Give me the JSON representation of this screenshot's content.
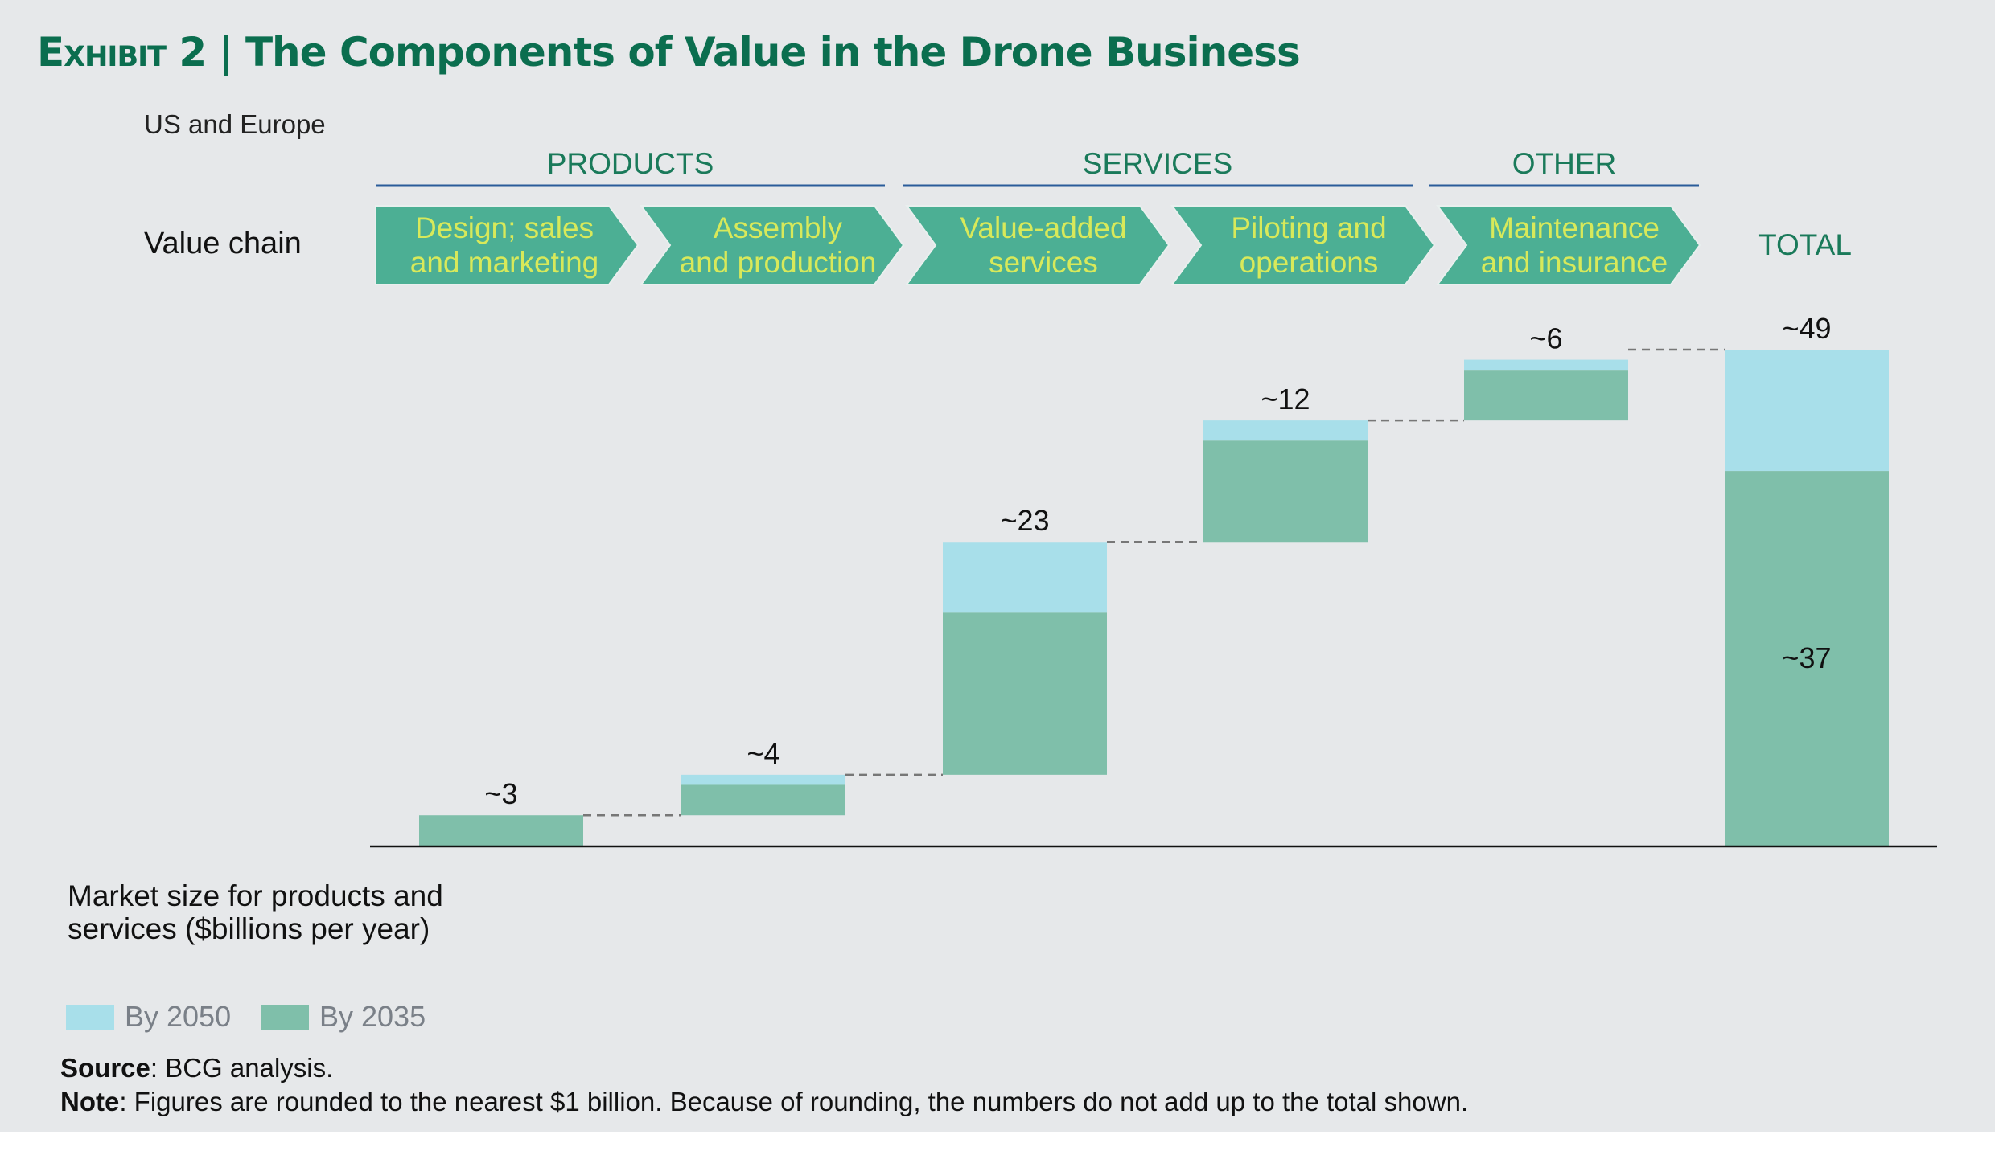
{
  "title": {
    "exhibit": "Exhibit 2",
    "separator": "|",
    "text": "The Components of Value in the Drone Business"
  },
  "subtitle": "US and Europe",
  "value_chain_label": "Value chain",
  "groups": [
    {
      "label": "PRODUCTS"
    },
    {
      "label": "SERVICES"
    },
    {
      "label": "OTHER"
    }
  ],
  "stages": [
    {
      "line1": "Design; sales",
      "line2": "and marketing"
    },
    {
      "line1": "Assembly",
      "line2": "and production"
    },
    {
      "line1": "Value-added",
      "line2": "services"
    },
    {
      "line1": "Piloting and",
      "line2": "operations"
    },
    {
      "line1": "Maintenance",
      "line2": "and insurance"
    }
  ],
  "total_label": "TOTAL",
  "colors": {
    "by_2050": "#a8dfea",
    "by_2035": "#7fbfaa",
    "chevron": "#4caf94",
    "chevron_text": "#d8e95a",
    "title": "#0b6e4f",
    "group_line": "#2a5c9a"
  },
  "chart_data": {
    "type": "bar",
    "subtype": "waterfall-stacked",
    "categories": [
      "Design; sales and marketing",
      "Assembly and production",
      "Value-added services",
      "Piloting and operations",
      "Maintenance and insurance",
      "TOTAL"
    ],
    "series": [
      {
        "name": "By 2050",
        "values": [
          3,
          4,
          23,
          12,
          6,
          49
        ]
      },
      {
        "name": "By 2035",
        "values": [
          3,
          3,
          16,
          10,
          5,
          37
        ]
      }
    ],
    "data_labels": [
      "~3",
      "~4",
      "~23",
      "~12",
      "~6",
      "~49"
    ],
    "total_inner_label": "~37",
    "ylabel": "Market size for products and services ($billions per year)",
    "ylim": [
      0,
      49
    ],
    "grid": false,
    "legend_placement": "bottom-left"
  },
  "legend": {
    "title": "Market size for products and services ($billions per year)",
    "items": [
      {
        "label": "By 2050"
      },
      {
        "label": "By 2035"
      }
    ]
  },
  "source": {
    "label": "Source",
    "text": ": BCG analysis."
  },
  "note": {
    "label": "Note",
    "text": ": Figures are rounded to the nearest $1 billion. Because of rounding, the numbers do not add up to the total shown."
  }
}
